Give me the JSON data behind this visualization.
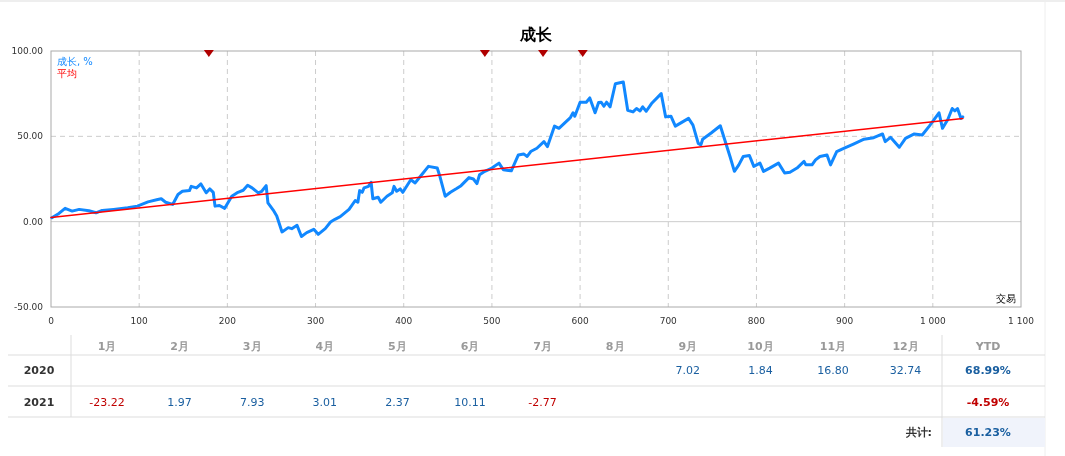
{
  "chart_data": [
    {
      "type": "line",
      "title": "成长",
      "xlabel": "交易",
      "xlim": [
        0,
        1100
      ],
      "ylim": [
        -50,
        100
      ],
      "xticks": [
        0,
        100,
        200,
        300,
        400,
        500,
        600,
        700,
        800,
        900,
        {
          "value": 1000,
          "label": "1 000"
        },
        {
          "value": 1100,
          "label": "1 100"
        }
      ],
      "yticks": [
        {
          "value": -50,
          "label": "-50.00"
        },
        {
          "value": 0,
          "label": "0.00"
        },
        {
          "value": 50,
          "label": "50.00"
        },
        {
          "value": 100,
          "label": "100.00"
        }
      ],
      "grid": true,
      "legend": "top left",
      "series": [
        {
          "name": "成长, %",
          "color": "#1188ff",
          "x": [
            1,
            9,
            16,
            24,
            32,
            43,
            51,
            58,
            71,
            87,
            98,
            110,
            121,
            125,
            130,
            138,
            144,
            149,
            157,
            159,
            165,
            170,
            176,
            180,
            184,
            186,
            191,
            197,
            205,
            212,
            218,
            223,
            228,
            235,
            239,
            244,
            246,
            252,
            256,
            262,
            269,
            273,
            279,
            284,
            290,
            298,
            303,
            311,
            317,
            322,
            328,
            338,
            345,
            348,
            350,
            353,
            355,
            360,
            363,
            365,
            371,
            374,
            381,
            387,
            389,
            392,
            396,
            399,
            408,
            413,
            419,
            428,
            438,
            441,
            447,
            453,
            460,
            465,
            474,
            479,
            483,
            486,
            492,
            500,
            508,
            513,
            522,
            530,
            536,
            540,
            544,
            551,
            559,
            563,
            571,
            576,
            589,
            592,
            594,
            600,
            607,
            611,
            617,
            621,
            624,
            627,
            630,
            634,
            640,
            649,
            654,
            660,
            664,
            668,
            671,
            675,
            681,
            692,
            697,
            703,
            708,
            723,
            728,
            734,
            737,
            739,
            749,
            759,
            770,
            775,
            780,
            785,
            792,
            797,
            804,
            808,
            815,
            825,
            832,
            838,
            846,
            854,
            856,
            863,
            867,
            872,
            880,
            884,
            891,
            899,
            910,
            922,
            933,
            943,
            946,
            952,
            962,
            969,
            979,
            988,
            996,
            1007,
            1011,
            1017,
            1022,
            1025,
            1028,
            1032,
            1034
          ],
          "values": [
            2.3,
            4.8,
            7.8,
            6.2,
            7.2,
            6.4,
            5.2,
            6.6,
            7.2,
            8.1,
            9.1,
            11.6,
            13,
            13.4,
            11.4,
            10.1,
            15.9,
            17.8,
            18.2,
            20.7,
            19.8,
            22.1,
            16.9,
            19.2,
            17.2,
            9.1,
            9.5,
            7.8,
            14.9,
            17.2,
            18.4,
            21.3,
            19.8,
            16.9,
            17.8,
            21.1,
            11,
            6.8,
            3.3,
            -6,
            -3.5,
            -4.1,
            -2.1,
            -8.7,
            -6.4,
            -4.5,
            -7.4,
            -4.1,
            -0.2,
            1.4,
            2.9,
            7.2,
            12.4,
            11.4,
            18.2,
            17.2,
            19.8,
            20.7,
            23.1,
            13.4,
            14.3,
            11.4,
            14.9,
            16.9,
            20.7,
            17.8,
            19.2,
            17.2,
            24.6,
            22.7,
            26.6,
            32.4,
            31.4,
            26.6,
            14.9,
            17.2,
            19.4,
            21.1,
            25.8,
            25,
            22.3,
            27.5,
            29.5,
            31.4,
            34.3,
            30.4,
            29.8,
            39.1,
            39.7,
            38.2,
            41.1,
            43,
            46.9,
            44,
            56,
            54.7,
            61,
            63.8,
            61.8,
            70,
            70,
            72.5,
            63.8,
            69.8,
            70,
            67.6,
            70,
            67.3,
            80.8,
            81.8,
            65.3,
            64.3,
            66.3,
            64.9,
            67.3,
            64.7,
            69.2,
            75,
            61.4,
            61.8,
            56,
            60.5,
            56.6,
            45.9,
            45,
            48.3,
            52.1,
            56.2,
            38.2,
            29.5,
            33.3,
            38.2,
            38.8,
            32.4,
            34.3,
            29.5,
            31.4,
            34.3,
            28.5,
            28.9,
            31.4,
            35.3,
            33.3,
            33.3,
            36.2,
            38.2,
            39.1,
            33.3,
            41.1,
            43,
            45.5,
            48.3,
            49.2,
            51.4,
            46.9,
            49.4,
            43.6,
            48.8,
            51.4,
            50.8,
            56,
            63.8,
            54.7,
            59.9,
            66.3,
            64.9,
            66.3,
            60.5,
            61.4
          ]
        },
        {
          "name": "平均",
          "color": "#ff0000",
          "x": [
            0,
            1034
          ],
          "values": [
            2.5,
            60.5
          ]
        },
        {
          "type": "scatter",
          "marker": "triangle",
          "color": "#b00000",
          "x": [
            179,
            492,
            558,
            603
          ],
          "values": [
            100,
            100,
            100,
            100
          ]
        }
      ]
    },
    {
      "type": "heatmap",
      "categories": [
        "1月",
        "2月",
        "3月",
        "4月",
        "5月",
        "6月",
        "7月",
        "8月",
        "9月",
        "10月",
        "11月",
        "12月",
        "YTD"
      ],
      "y_categories": [
        "2020",
        "2021"
      ],
      "cells": [
        [
          null,
          null,
          null,
          null,
          null,
          null,
          null,
          null,
          7.02,
          1.84,
          16.8,
          32.74,
          68.99
        ],
        [
          -23.22,
          1.97,
          7.93,
          3.01,
          2.37,
          10.11,
          -2.77,
          null,
          null,
          null,
          null,
          null,
          -4.59
        ]
      ],
      "cell_labels": [
        [
          null,
          null,
          null,
          null,
          null,
          null,
          null,
          null,
          "7.02",
          "1.84",
          "16.80",
          "32.74",
          "68.99%"
        ],
        [
          "-23.22",
          "1.97",
          "7.93",
          "3.01",
          "2.37",
          "10.11",
          "-2.77",
          null,
          null,
          null,
          null,
          null,
          "-4.59%"
        ]
      ],
      "annotations": [
        "共计:",
        "61.23%"
      ]
    }
  ]
}
